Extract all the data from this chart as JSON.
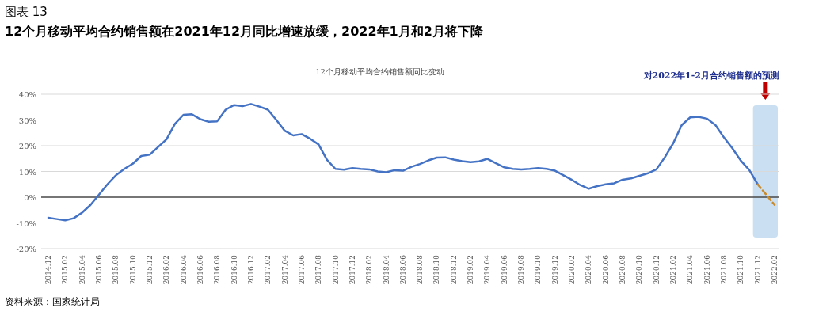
{
  "chart_data": {
    "type": "line",
    "title": "图表 13",
    "subtitle": "12个月移动平均合约销售额在2021年12月同比增速放缓，2022年1月和2月将下降",
    "annotations": [
      "12个月移动平均合约销售额同比变动",
      "资料来源：国家统计局"
    ],
    "categories": [
      "2014.12",
      null,
      "2015.02",
      null,
      "2015.04",
      null,
      "2015.06",
      null,
      "2015.08",
      null,
      "2015.10",
      null,
      "2015.12",
      null,
      "2016.02",
      null,
      "2016.04",
      null,
      "2016.06",
      null,
      "2016.08",
      null,
      "2016.10",
      null,
      "2016.12",
      null,
      "2017.02",
      null,
      "2017.04",
      null,
      "2017.06",
      null,
      "2017.08",
      null,
      "2017.10",
      null,
      "2017.12",
      null,
      "2018.02",
      null,
      "2018.04",
      null,
      "2018.06",
      null,
      "2018.08",
      null,
      "2018.10",
      null,
      "2018.12",
      null,
      "2019.02",
      null,
      "2019.04",
      null,
      "2019.06",
      null,
      "2019.08",
      null,
      "2019.10",
      null,
      "2019.12",
      null,
      "2020.02",
      null,
      "2020.04",
      null,
      "2020.06",
      null,
      "2020.08",
      null,
      "2020.10",
      null,
      "2020.12",
      null,
      "2021.02",
      null,
      "2021.04",
      null,
      "2021.06",
      null,
      "2021.08",
      null,
      "2021.10",
      null,
      "2021.12",
      null,
      "2022.02"
    ],
    "series": [
      {
        "color": "#4472c4",
        "line_style": "solid",
        "values": [
          -8,
          -8.5,
          -9,
          -8.2,
          -6,
          -3,
          1,
          5,
          8.5,
          11,
          13,
          16,
          16.5,
          19.5,
          22.5,
          28.5,
          32,
          32.2,
          30.3,
          29.3,
          29.5,
          34,
          35.8,
          35.4,
          36.2,
          35.2,
          34,
          30,
          25.8,
          24,
          24.5,
          22.7,
          20.5,
          14.5,
          11,
          10.7,
          11.3,
          11,
          10.8,
          10,
          9.7,
          10.5,
          10.3,
          11.8,
          12.9,
          14.3,
          15.4,
          15.5,
          14.6,
          14,
          13.6,
          13.9,
          14.9,
          13.2,
          11.6,
          11,
          10.8,
          11,
          11.3,
          11,
          10.3,
          8.5,
          6.7,
          4.7,
          3.3,
          4.3,
          5,
          5.4,
          6.8,
          7.3,
          8.3,
          9.3,
          10.8,
          15.5,
          21,
          28,
          31,
          31.2,
          30.5,
          28,
          23.2,
          19,
          14.2,
          10.6,
          5,
          null,
          null
        ]
      },
      {
        "color": "#c98a2b",
        "line_style": "dashed",
        "values": [
          null,
          null,
          null,
          null,
          null,
          null,
          null,
          null,
          null,
          null,
          null,
          null,
          null,
          null,
          null,
          null,
          null,
          null,
          null,
          null,
          null,
          null,
          null,
          null,
          null,
          null,
          null,
          null,
          null,
          null,
          null,
          null,
          null,
          null,
          null,
          null,
          null,
          null,
          null,
          null,
          null,
          null,
          null,
          null,
          null,
          null,
          null,
          null,
          null,
          null,
          null,
          null,
          null,
          null,
          null,
          null,
          null,
          null,
          null,
          null,
          null,
          null,
          null,
          null,
          null,
          null,
          null,
          null,
          null,
          null,
          null,
          null,
          null,
          null,
          null,
          null,
          null,
          null,
          null,
          null,
          null,
          null,
          null,
          null,
          5,
          1,
          -3
        ]
      }
    ],
    "ylim": [
      -20,
      40
    ],
    "yticks": [
      {
        "value": -20,
        "label": "-20%"
      },
      {
        "value": -10,
        "label": "-10%"
      },
      {
        "value": 0,
        "label": "0%"
      },
      {
        "value": 10,
        "label": "10%"
      },
      {
        "value": 20,
        "label": "20%"
      },
      {
        "value": 30,
        "label": "30%"
      },
      {
        "value": 40,
        "label": "40%"
      }
    ],
    "grid": "y",
    "marker": "none",
    "ref_lines": [
      {
        "axis": "y",
        "value": 0,
        "color": "#000000"
      }
    ],
    "bands": [
      {
        "axis": "x",
        "from": "2021.12",
        "to": "2022.02",
        "label": "对2022年1-2月合约销售额的预测",
        "color": "#bdd7ee"
      }
    ]
  }
}
